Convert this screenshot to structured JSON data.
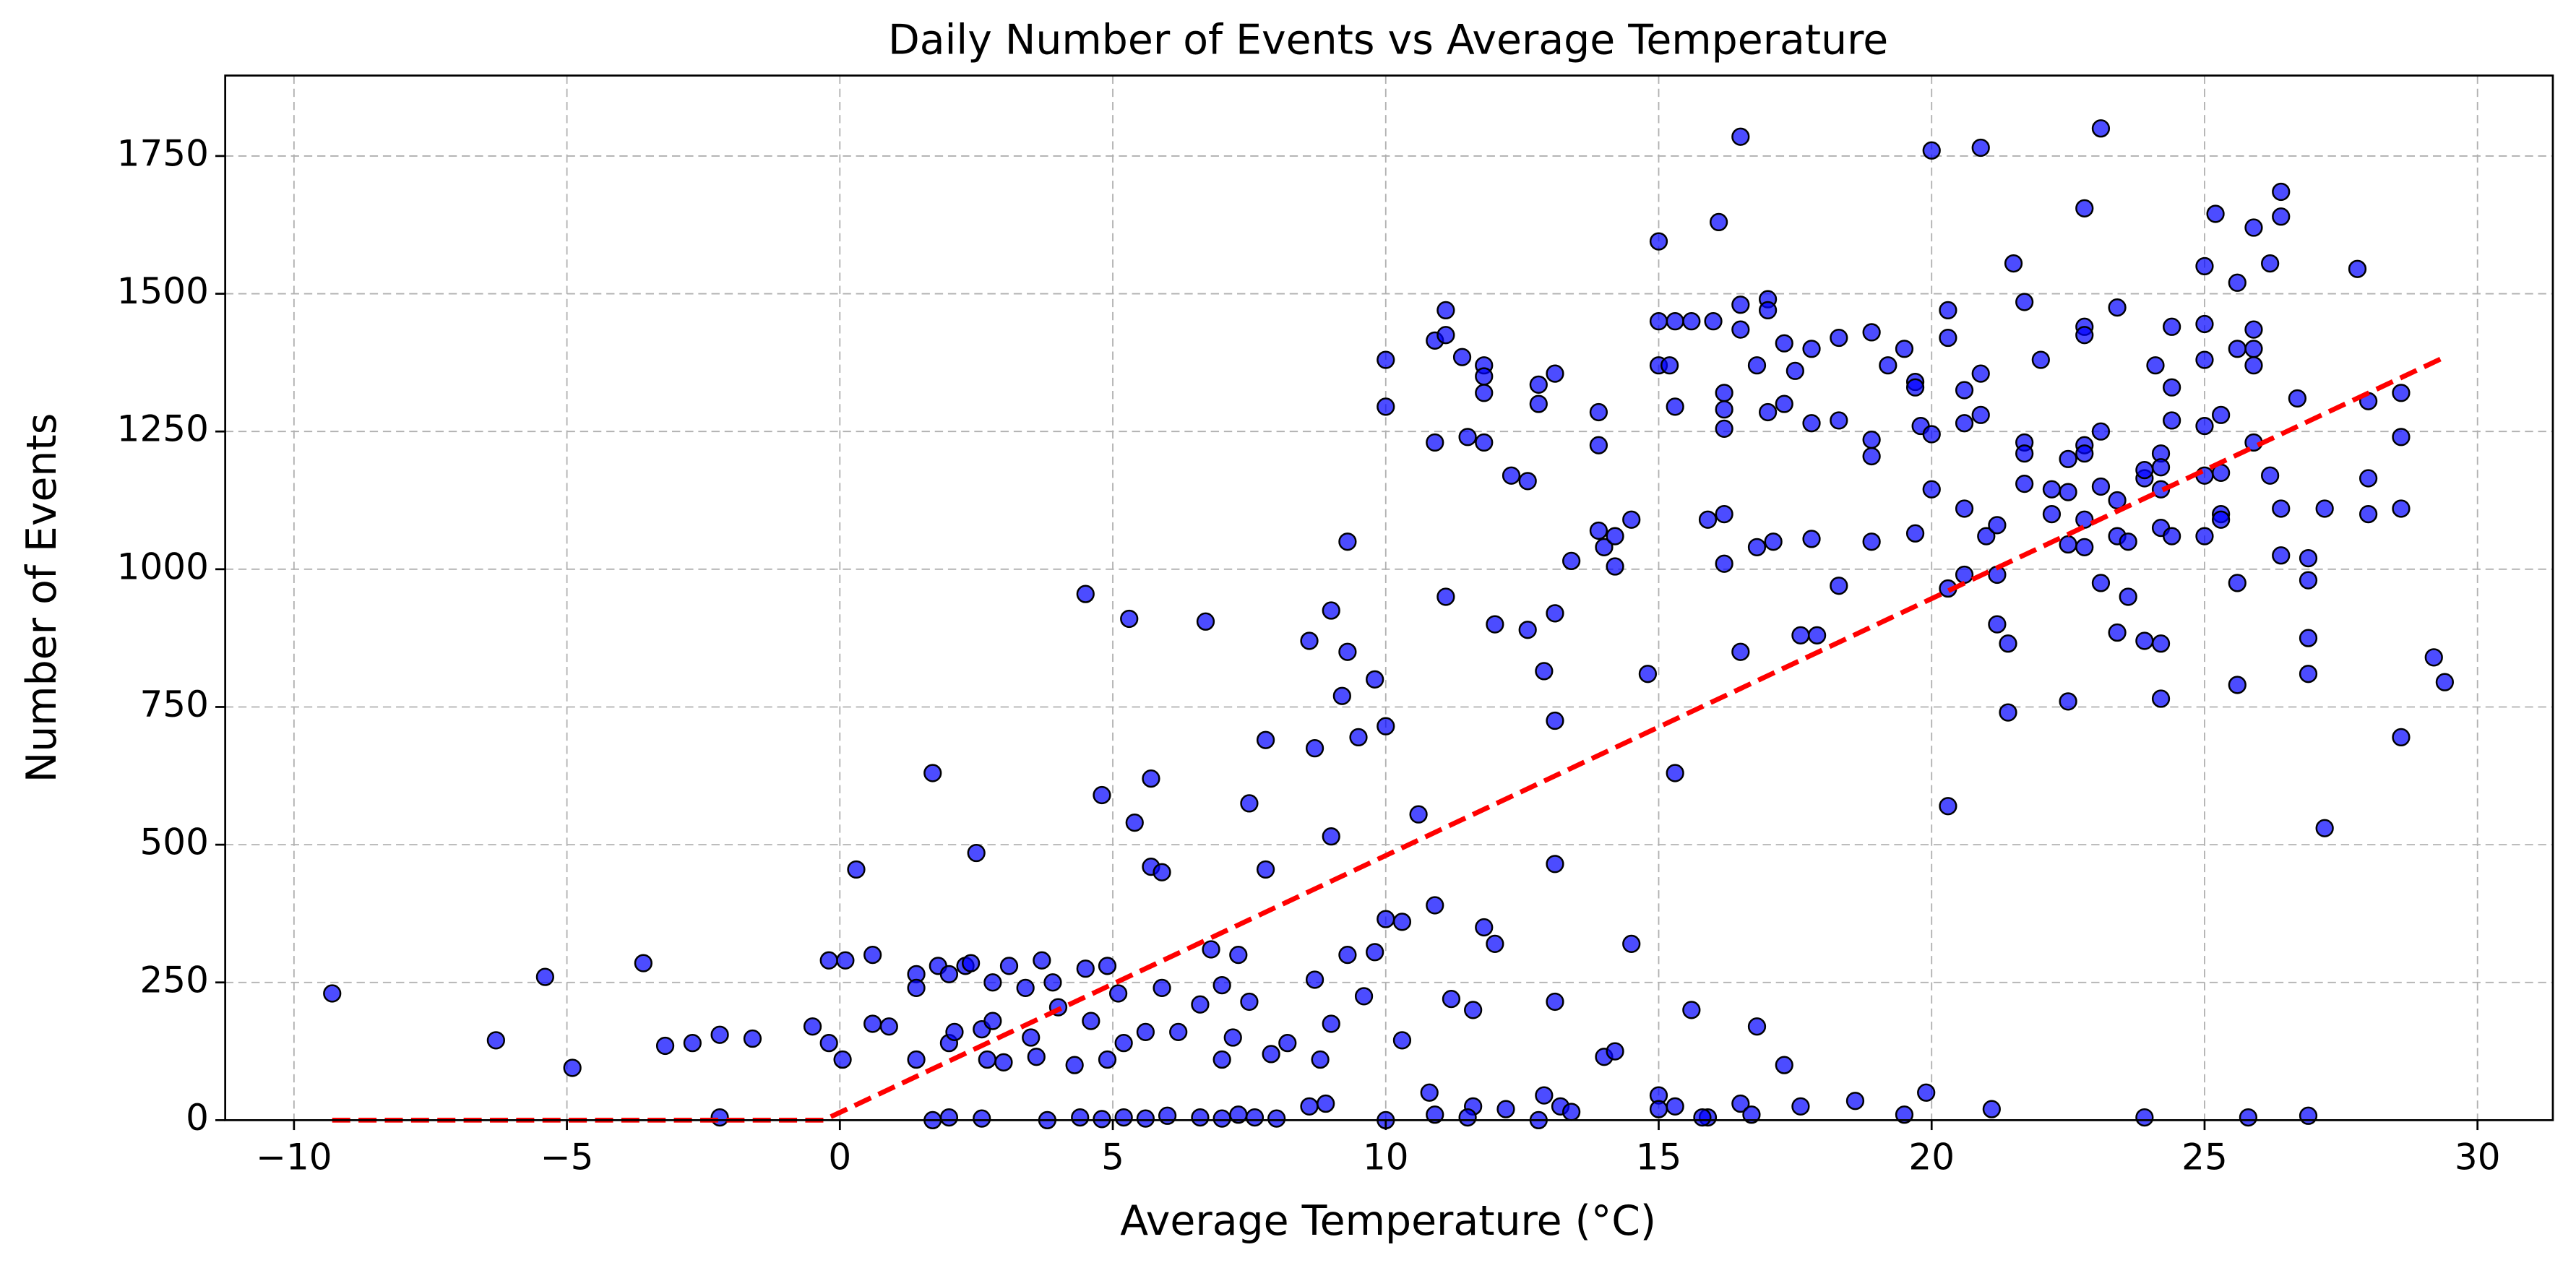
{
  "chart_data": {
    "type": "scatter",
    "title": "Daily Number of Events vs Average Temperature",
    "x_label": "Average Temperature (°C)",
    "y_label": "Number of Events",
    "xlim": [
      -11.26,
      31.38
    ],
    "ylim": [
      0,
      1896
    ],
    "xticks": [
      {
        "value": -10,
        "label": "−10"
      },
      {
        "value": -5,
        "label": "−5"
      },
      0,
      5,
      10,
      15,
      20,
      25,
      30
    ],
    "yticks": [
      0,
      250,
      500,
      750,
      1000,
      1250,
      1500,
      1750
    ],
    "grid": true,
    "series": [
      {
        "type": "scatter",
        "color": "#0000ff",
        "x": [
          -9.3,
          -6.3,
          -5.4,
          -4.9,
          -3.6,
          -3.2,
          -2.7,
          -2.2,
          -2.2,
          -1.6,
          -0.5,
          -0.2,
          -0.2,
          0.1,
          0.05,
          0.3,
          0.6,
          0.6,
          0.9,
          1.4,
          1.4,
          1.4,
          1.7,
          1.8,
          2,
          2,
          2.1,
          2.3,
          2.4,
          2.5,
          2.6,
          2.7,
          2.8,
          2.8,
          3,
          3.1,
          3.4,
          3.5,
          3.6,
          3.7,
          3.9,
          4,
          4.3,
          4.5,
          4.5,
          4.6,
          4.8,
          4.9,
          4.9,
          5.1,
          5.2,
          5.3,
          5.4,
          5.6,
          5.7,
          5.7,
          5.9,
          5.9,
          6.2,
          6.6,
          6.7,
          6.8,
          7,
          7,
          7.2,
          7.3,
          7.5,
          7.5,
          7.8,
          7.8,
          7.9,
          8.2,
          8.6,
          8.7,
          8.7,
          8.8,
          9,
          9,
          9,
          9.3,
          9.3,
          9.2,
          9.3,
          9.5,
          9.6,
          9.8,
          9.8,
          10,
          10,
          10,
          10,
          10.3,
          10.3,
          10.6,
          10.9,
          10.9,
          10.9,
          11.1,
          11.1,
          11.1,
          11.2,
          11.4,
          11.5,
          11.6,
          11.8,
          11.8,
          11.8,
          11.8,
          11.8,
          12,
          12,
          12.3,
          12.6,
          12.6,
          12.8,
          12.8,
          12.9,
          13.1,
          13.1,
          13.1,
          13.1,
          13.1,
          13.4,
          13.9,
          13.9,
          13.9,
          14,
          14,
          14.2,
          14.2,
          14.2,
          14.5,
          14.5,
          14.8,
          15,
          15,
          15,
          15.2,
          15.3,
          15.3,
          15.3,
          15.6,
          15.6,
          15.9,
          16,
          16.1,
          16.2,
          16.2,
          16.2,
          16.2,
          16.2,
          16.5,
          16.5,
          16.5,
          16.5,
          16.8,
          16.8,
          16.8,
          17,
          17,
          17,
          17.1,
          17.3,
          17.3,
          17.3,
          17.5,
          17.6,
          17.8,
          17.8,
          17.8,
          17.9,
          18.3,
          18.3,
          18.3,
          18.9,
          18.9,
          18.9,
          18.9,
          19.2,
          19.5,
          19.7,
          19.7,
          19.7,
          19.8,
          19.9,
          20,
          20,
          20,
          20.3,
          20.3,
          20.3,
          20.3,
          20.6,
          20.6,
          20.6,
          20.6,
          20.9,
          20.9,
          20.9,
          21,
          21.2,
          21.2,
          21.2,
          21.4,
          21.4,
          21.5,
          21.7,
          21.7,
          21.7,
          21.7,
          22,
          22.2,
          22.2,
          22.5,
          22.5,
          22.5,
          22.5,
          22.8,
          22.8,
          22.8,
          22.8,
          22.8,
          22.8,
          22.8,
          23.1,
          23.1,
          23.1,
          23.1,
          23.4,
          23.4,
          23.4,
          23.4,
          23.6,
          23.6,
          23.9,
          23.9,
          23.9,
          24.1,
          24.2,
          24.2,
          24.2,
          24.2,
          24.2,
          24.2,
          24.4,
          24.4,
          24.4,
          24.4,
          25,
          25,
          25,
          25,
          25,
          25,
          25.2,
          25.3,
          25.3,
          25.3,
          25.3,
          25.6,
          25.6,
          25.6,
          25.6,
          25.9,
          25.9,
          25.9,
          25.9,
          25.9,
          26.2,
          26.2,
          26.4,
          26.4,
          26.4,
          26.4,
          26.7,
          26.9,
          26.9,
          26.9,
          26.9,
          27.2,
          27.2,
          27.8,
          28,
          28,
          28,
          28.6,
          28.6,
          28.6,
          28.6,
          29.2,
          29.4,
          1.7,
          2,
          2.6,
          3.8,
          4.4,
          4.8,
          5.2,
          5.6,
          6,
          6.6,
          7,
          7.3,
          7.6,
          8,
          8.6,
          8.9,
          10,
          10.8,
          10.9,
          11.6,
          12.2,
          12.9,
          13.2,
          13.4,
          15,
          15,
          15.3,
          15.9,
          16.5,
          16.7,
          17.6,
          18.6,
          19.5,
          21.1,
          23.9,
          25.8,
          26.9,
          15.8,
          12.8,
          11.5
        ],
        "values": [
          230,
          145,
          260,
          95,
          285,
          135,
          140,
          155,
          5,
          148,
          170,
          290,
          140,
          290,
          110,
          455,
          300,
          175,
          170,
          265,
          240,
          110,
          630,
          280,
          265,
          140,
          160,
          280,
          285,
          485,
          165,
          110,
          250,
          180,
          105,
          280,
          240,
          150,
          115,
          290,
          250,
          205,
          100,
          955,
          275,
          180,
          590,
          280,
          110,
          230,
          140,
          910,
          540,
          160,
          620,
          460,
          450,
          240,
          160,
          210,
          905,
          310,
          245,
          110,
          150,
          300,
          215,
          575,
          690,
          455,
          120,
          140,
          870,
          675,
          255,
          110,
          925,
          515,
          175,
          1050,
          850,
          770,
          300,
          695,
          225,
          800,
          305,
          715,
          1380,
          1295,
          365,
          360,
          145,
          555,
          1230,
          390,
          1415,
          1470,
          1425,
          950,
          220,
          1385,
          1240,
          200,
          1370,
          1350,
          1320,
          1230,
          350,
          320,
          900,
          1170,
          1160,
          890,
          1300,
          1335,
          815,
          1355,
          920,
          725,
          465,
          215,
          1015,
          1070,
          1225,
          1285,
          1040,
          115,
          1005,
          1060,
          125,
          1090,
          320,
          810,
          1595,
          1450,
          1370,
          1370,
          1450,
          1295,
          630,
          1450,
          200,
          1090,
          1450,
          1630,
          1320,
          1290,
          1255,
          1100,
          1010,
          1785,
          1480,
          1435,
          850,
          1370,
          1040,
          170,
          1490,
          1470,
          1285,
          1050,
          1300,
          1410,
          100,
          1360,
          880,
          1400,
          1265,
          1055,
          880,
          1420,
          1270,
          970,
          1430,
          1235,
          1205,
          1050,
          1370,
          1400,
          1340,
          1330,
          1065,
          1260,
          50,
          1760,
          1245,
          1145,
          1470,
          1420,
          965,
          570,
          1325,
          1265,
          1110,
          990,
          1765,
          1355,
          1280,
          1060,
          1080,
          990,
          900,
          865,
          740,
          1555,
          1485,
          1230,
          1210,
          1155,
          1380,
          1145,
          1100,
          1200,
          1140,
          1045,
          760,
          1655,
          1440,
          1425,
          1225,
          1210,
          1090,
          1040,
          1800,
          1250,
          1150,
          975,
          1475,
          1125,
          1060,
          885,
          1050,
          950,
          1165,
          1180,
          870,
          1370,
          1210,
          1185,
          1145,
          1075,
          865,
          765,
          1440,
          1330,
          1270,
          1060,
          1550,
          1445,
          1380,
          1260,
          1170,
          1060,
          1645,
          1280,
          1175,
          1100,
          1090,
          1520,
          1400,
          975,
          790,
          1620,
          1435,
          1400,
          1370,
          1230,
          1555,
          1170,
          1685,
          1640,
          1110,
          1025,
          1310,
          1020,
          980,
          875,
          810,
          1110,
          530,
          1545,
          1305,
          1165,
          1100,
          1320,
          1240,
          1110,
          695,
          840,
          795,
          0,
          5,
          3,
          0,
          5,
          2,
          5,
          3,
          8,
          5,
          3,
          10,
          5,
          3,
          25,
          30,
          0,
          50,
          10,
          25,
          20,
          45,
          25,
          15,
          45,
          20,
          25,
          5,
          30,
          10,
          25,
          35,
          10,
          20,
          5,
          5,
          8,
          5,
          0,
          5
        ]
      },
      {
        "type": "line",
        "color": "#ff0000",
        "x": [
          -9.3,
          -0.3,
          29.4
        ],
        "values": [
          0,
          0,
          1385
        ]
      }
    ]
  }
}
